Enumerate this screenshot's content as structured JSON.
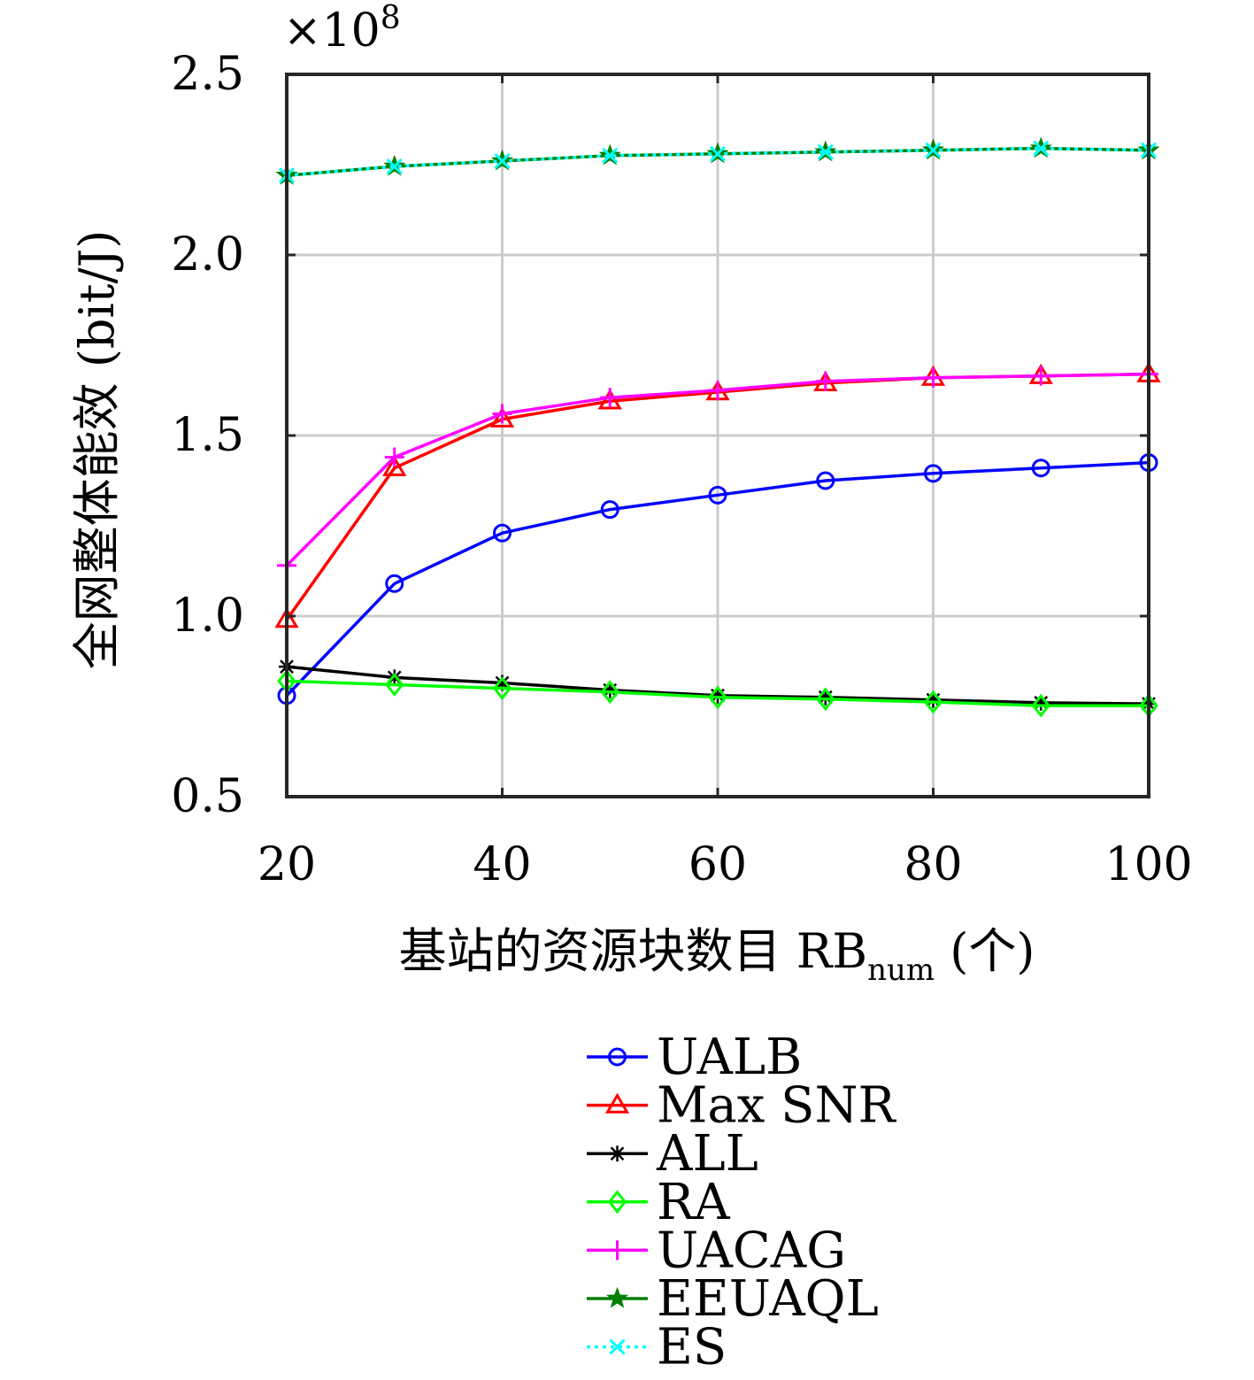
{
  "chart_data": {
    "type": "line",
    "title": "",
    "xlabel": "基站的资源块数目 RB",
    "xlabel_sub": "num",
    "xlabel_suffix": " (个)",
    "ylabel": "全网整体能效 (bit/J)",
    "y_multiplier": "×10",
    "y_multiplier_exp": "8",
    "xlim": [
      20,
      100
    ],
    "ylim": [
      0.5,
      2.5
    ],
    "xticks": [
      20,
      40,
      60,
      80,
      100
    ],
    "xtick_labels": [
      "20",
      "40",
      "60",
      "80",
      "100"
    ],
    "yticks": [
      0.5,
      1.0,
      1.5,
      2.0,
      2.5
    ],
    "ytick_labels": [
      "0.5",
      "1.0",
      "1.5",
      "2.0",
      "2.5"
    ],
    "grid": true,
    "legend_position": "bottom-outside",
    "x": [
      20,
      30,
      40,
      50,
      60,
      70,
      80,
      90,
      100
    ],
    "series": [
      {
        "name": "UALB",
        "color": "#0000ff",
        "marker": "circle",
        "dash": "solid",
        "values": [
          0.78,
          1.09,
          1.23,
          1.295,
          1.335,
          1.375,
          1.395,
          1.41,
          1.425
        ]
      },
      {
        "name": "Max SNR",
        "color": "#ff0000",
        "marker": "triangle",
        "dash": "solid",
        "values": [
          0.99,
          1.41,
          1.545,
          1.595,
          1.62,
          1.645,
          1.66,
          1.665,
          1.67
        ]
      },
      {
        "name": "ALL",
        "color": "#000000",
        "marker": "asterisk",
        "dash": "solid",
        "values": [
          0.86,
          0.83,
          0.815,
          0.795,
          0.78,
          0.775,
          0.768,
          0.76,
          0.757
        ]
      },
      {
        "name": "RA",
        "color": "#00ff00",
        "marker": "diamond",
        "dash": "solid",
        "values": [
          0.82,
          0.81,
          0.8,
          0.79,
          0.775,
          0.77,
          0.762,
          0.752,
          0.752
        ]
      },
      {
        "name": "UACAG",
        "color": "#ff00ff",
        "marker": "plus",
        "dash": "solid",
        "values": [
          1.14,
          1.44,
          1.56,
          1.605,
          1.625,
          1.65,
          1.66,
          1.665,
          1.67
        ]
      },
      {
        "name": "EEUAQL",
        "color": "#007f00",
        "marker": "star",
        "dash": "solid",
        "values": [
          2.22,
          2.245,
          2.26,
          2.275,
          2.28,
          2.285,
          2.29,
          2.295,
          2.29
        ]
      },
      {
        "name": "ES",
        "color": "#00ffff",
        "marker": "x",
        "dash": "dotted",
        "values": [
          2.22,
          2.245,
          2.26,
          2.275,
          2.28,
          2.285,
          2.29,
          2.295,
          2.29
        ]
      }
    ]
  }
}
